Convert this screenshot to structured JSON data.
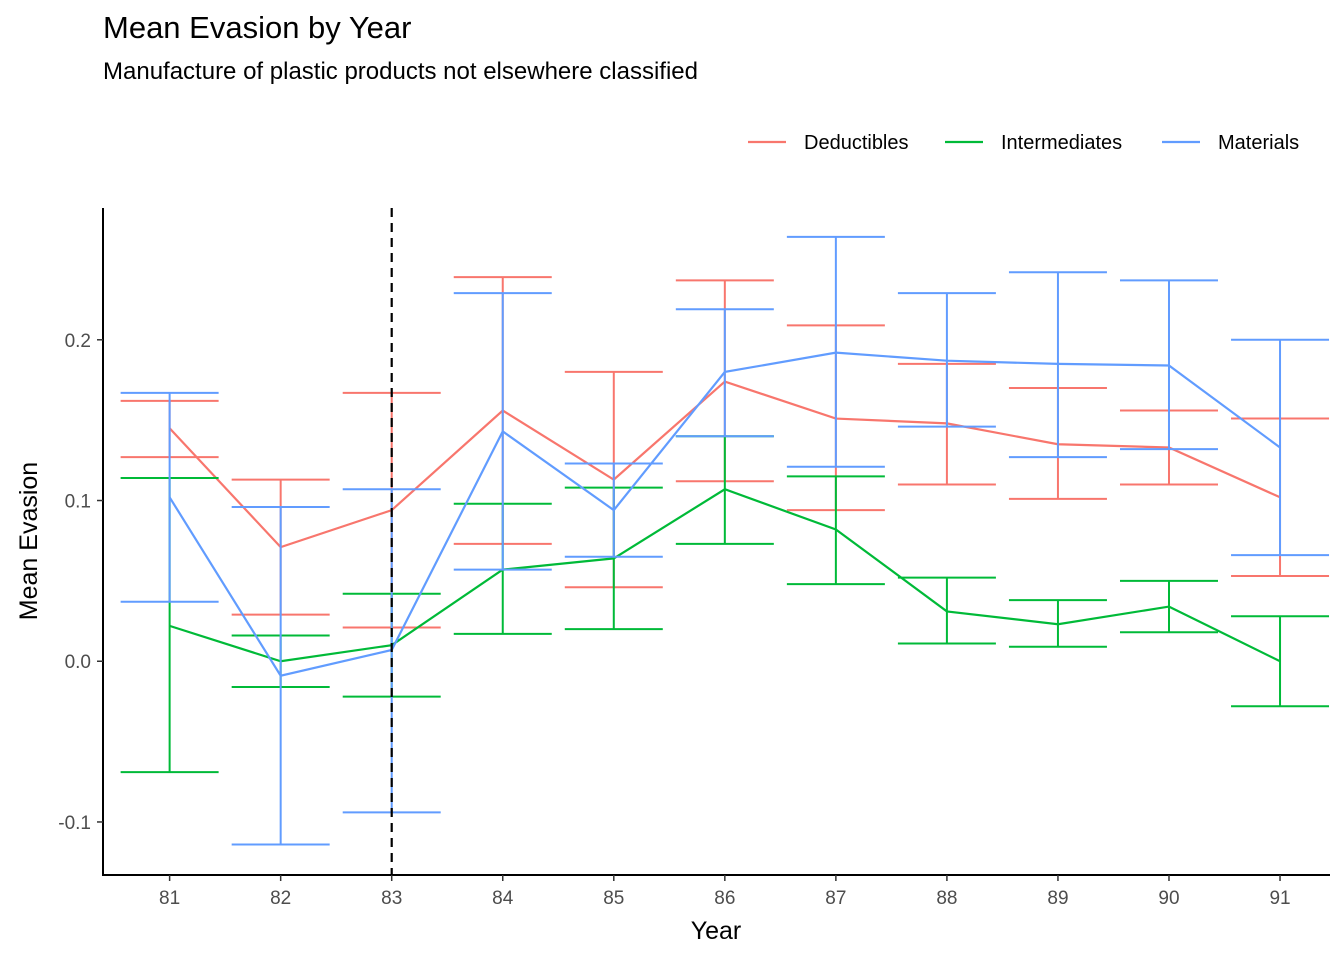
{
  "chart_data": {
    "type": "line",
    "title": "Mean Evasion by Year",
    "subtitle": "Manufacture of plastic products not elsewhere classified",
    "xlabel": "Year",
    "ylabel": "Mean Evasion",
    "x": [
      81,
      82,
      83,
      84,
      85,
      86,
      87,
      88,
      89,
      90,
      91
    ],
    "xlim": [
      80.4,
      91.45
    ],
    "ylim": [
      -0.133,
      0.282
    ],
    "yticks": [
      -0.1,
      0.0,
      0.1,
      0.2
    ],
    "ytick_labels": [
      "-0.1",
      "0.0",
      "0.1",
      "0.2"
    ],
    "reference_line": {
      "x": 83,
      "style": "dashed",
      "color": "#000000"
    },
    "legend_position": "top-right",
    "grid": false,
    "error_bars": true,
    "series": [
      {
        "name": "Deductibles",
        "color": "#F8766D",
        "values": [
          0.145,
          0.071,
          0.094,
          0.156,
          0.113,
          0.174,
          0.151,
          0.148,
          0.135,
          0.133,
          0.102
        ],
        "lower": [
          0.127,
          0.029,
          0.021,
          0.073,
          0.046,
          0.112,
          0.094,
          0.11,
          0.101,
          0.11,
          0.053
        ],
        "upper": [
          0.162,
          0.113,
          0.167,
          0.239,
          0.18,
          0.237,
          0.209,
          0.185,
          0.17,
          0.156,
          0.151
        ]
      },
      {
        "name": "Intermediates",
        "color": "#00BA38",
        "values": [
          0.022,
          0.0,
          0.01,
          0.057,
          0.064,
          0.107,
          0.082,
          0.031,
          0.023,
          0.034,
          0.0
        ],
        "lower": [
          -0.069,
          -0.016,
          -0.022,
          0.017,
          0.02,
          0.073,
          0.048,
          0.011,
          0.009,
          0.018,
          -0.028
        ],
        "upper": [
          0.114,
          0.016,
          0.042,
          0.098,
          0.108,
          0.14,
          0.115,
          0.052,
          0.038,
          0.05,
          0.028
        ]
      },
      {
        "name": "Materials",
        "color": "#619CFF",
        "values": [
          0.102,
          -0.009,
          0.007,
          0.143,
          0.094,
          0.18,
          0.192,
          0.187,
          0.185,
          0.184,
          0.133
        ],
        "lower": [
          0.037,
          -0.114,
          -0.094,
          0.057,
          0.065,
          0.14,
          0.121,
          0.146,
          0.127,
          0.132,
          0.066
        ],
        "upper": [
          0.167,
          0.096,
          0.107,
          0.229,
          0.123,
          0.219,
          0.264,
          0.229,
          0.242,
          0.237,
          0.2
        ]
      }
    ]
  }
}
